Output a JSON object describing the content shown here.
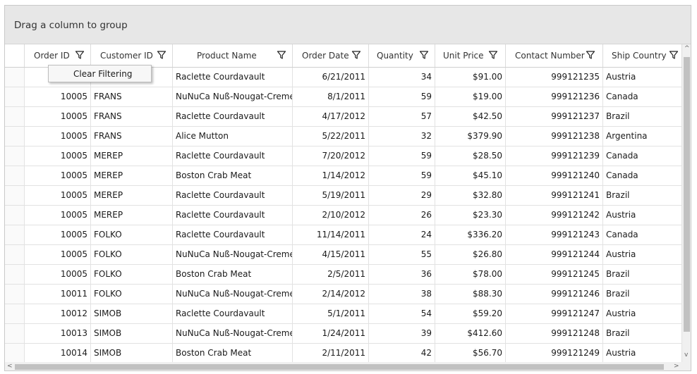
{
  "group_panel": {
    "text": "Drag a column to group"
  },
  "columns": [
    {
      "key": "order_id",
      "label": "Order ID"
    },
    {
      "key": "customer_id",
      "label": "Customer ID"
    },
    {
      "key": "product_name",
      "label": "Product Name"
    },
    {
      "key": "order_date",
      "label": "Order Date"
    },
    {
      "key": "quantity",
      "label": "Quantity"
    },
    {
      "key": "unit_price",
      "label": "Unit Price"
    },
    {
      "key": "contact_number",
      "label": "Contact Number"
    },
    {
      "key": "ship_country",
      "label": "Ship Country"
    }
  ],
  "filter_menu": {
    "item": "Clear Filtering"
  },
  "rows": [
    [
      "",
      "",
      "Raclette Courdavault",
      "6/21/2011",
      "34",
      "$91.00",
      "999121235",
      "Austria"
    ],
    [
      "10005",
      "FRANS",
      "NuNuCa Nuß-Nougat-Creme",
      "8/1/2011",
      "59",
      "$19.00",
      "999121236",
      "Canada"
    ],
    [
      "10005",
      "FRANS",
      "Raclette Courdavault",
      "4/17/2012",
      "57",
      "$42.50",
      "999121237",
      "Brazil"
    ],
    [
      "10005",
      "FRANS",
      "Alice Mutton",
      "5/22/2011",
      "32",
      "$379.90",
      "999121238",
      "Argentina"
    ],
    [
      "10005",
      "MEREP",
      "Raclette Courdavault",
      "7/20/2012",
      "59",
      "$28.50",
      "999121239",
      "Canada"
    ],
    [
      "10005",
      "MEREP",
      "Boston Crab Meat",
      "1/14/2012",
      "59",
      "$45.10",
      "999121240",
      "Canada"
    ],
    [
      "10005",
      "MEREP",
      "Raclette Courdavault",
      "5/19/2011",
      "29",
      "$32.80",
      "999121241",
      "Brazil"
    ],
    [
      "10005",
      "MEREP",
      "Raclette Courdavault",
      "2/10/2012",
      "26",
      "$23.30",
      "999121242",
      "Austria"
    ],
    [
      "10005",
      "FOLKO",
      "Raclette Courdavault",
      "11/14/2011",
      "24",
      "$336.20",
      "999121243",
      "Canada"
    ],
    [
      "10005",
      "FOLKO",
      "NuNuCa Nuß-Nougat-Creme",
      "4/15/2011",
      "55",
      "$26.80",
      "999121244",
      "Austria"
    ],
    [
      "10005",
      "FOLKO",
      "Boston Crab Meat",
      "2/5/2011",
      "36",
      "$78.00",
      "999121245",
      "Brazil"
    ],
    [
      "10011",
      "FOLKO",
      "NuNuCa Nuß-Nougat-Creme",
      "2/14/2012",
      "38",
      "$88.30",
      "999121246",
      "Brazil"
    ],
    [
      "10012",
      "SIMOB",
      "Raclette Courdavault",
      "5/1/2011",
      "54",
      "$59.20",
      "999121247",
      "Austria"
    ],
    [
      "10013",
      "SIMOB",
      "NuNuCa Nuß-Nougat-Creme",
      "1/24/2011",
      "39",
      "$412.60",
      "999121248",
      "Brazil"
    ],
    [
      "10014",
      "SIMOB",
      "Boston Crab Meat",
      "2/11/2011",
      "42",
      "$56.70",
      "999121249",
      "Austria"
    ]
  ]
}
